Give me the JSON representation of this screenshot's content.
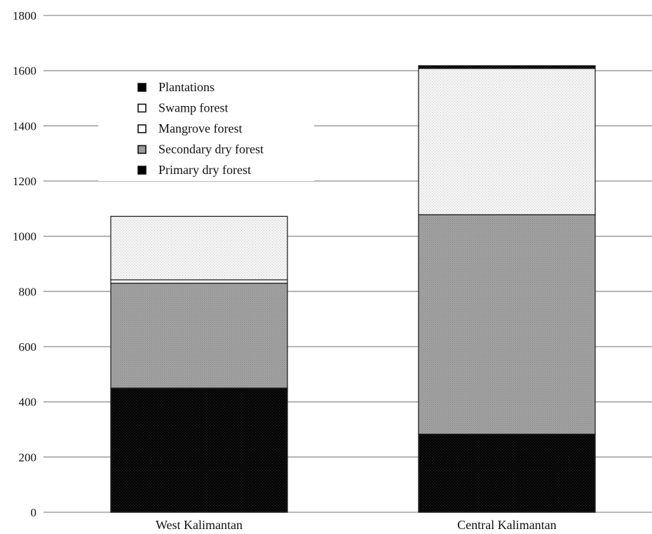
{
  "chart_data": {
    "type": "bar",
    "stacked": true,
    "categories": [
      "West Kalimantan",
      "Central Kalimantan"
    ],
    "series": [
      {
        "name": "Primary dry forest",
        "values": [
          450,
          283
        ]
      },
      {
        "name": "Secondary dry forest",
        "values": [
          380,
          795
        ]
      },
      {
        "name": "Mangrove forest",
        "values": [
          12,
          0
        ]
      },
      {
        "name": "Swamp forest",
        "values": [
          230,
          530
        ]
      },
      {
        "name": "Plantations",
        "values": [
          0,
          10
        ]
      }
    ],
    "legend_order": [
      "Plantations",
      "Swamp forest",
      "Mangrove forest",
      "Secondary dry forest",
      "Primary dry forest"
    ],
    "y_ticks": [
      "0",
      "200",
      "400",
      "600",
      "800",
      "1000",
      "1200",
      "1400",
      "1600",
      "1800"
    ],
    "ylim": [
      0,
      1800
    ],
    "grid": true,
    "legend_position": "top-left",
    "colors": {
      "Primary dry forest": "#000000",
      "Secondary dry forest": "#9a9a9a",
      "Mangrove forest": "#ffffff",
      "Swamp forest": "#ececec",
      "Plantations": "#000000"
    },
    "legend_swatch_colors": {
      "Plantations": "#000000",
      "Swamp forest": "#ffffff",
      "Mangrove forest": "#ffffff",
      "Secondary dry forest": "#9a9a9a",
      "Primary dry forest": "#000000"
    },
    "grid_color": "#a0a0a0"
  }
}
